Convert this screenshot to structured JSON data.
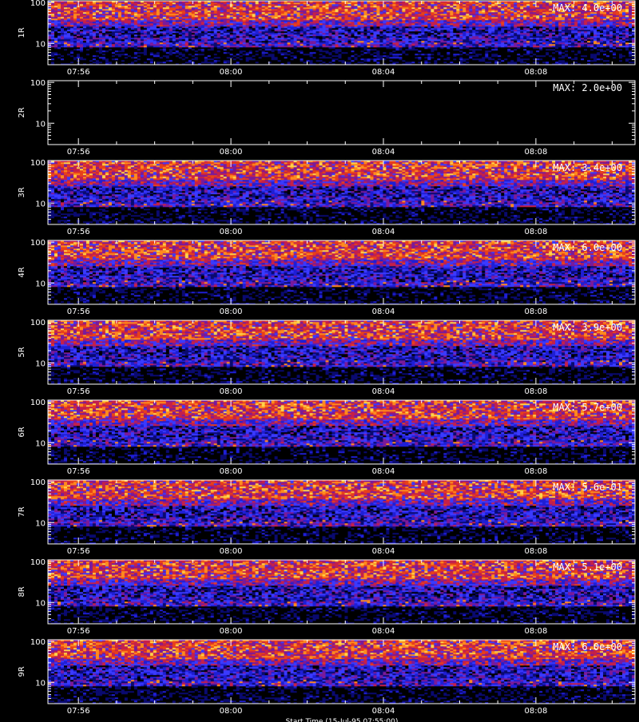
{
  "chart_data": {
    "type": "heatmap",
    "colors": {
      "background": "#000000",
      "axis": "#ffffff",
      "colormap": [
        "#000000",
        "#0a0a70",
        "#1f1fd6",
        "#3a3aff",
        "#7a1a9a",
        "#c4204a",
        "#e8401a",
        "#ff8a1e",
        "#ffd24a",
        "#ffffff"
      ]
    },
    "x_tick_labels": [
      "07:56",
      "08:00",
      "08:04",
      "08:08"
    ],
    "x_ticks_minutes": [
      56,
      60,
      64,
      68
    ],
    "x_range_minutes": [
      55.2,
      70.6
    ],
    "y_tick_labels": [
      "10",
      "100"
    ],
    "y_ticks": [
      10,
      100
    ],
    "y_range": [
      3,
      110
    ],
    "y_scale": "log",
    "footer_text": "Start Time (15-Jul-95 07:55:00)",
    "panels": [
      {
        "label": "1R",
        "max_text": "MAX: 4.0e+00",
        "empty": false
      },
      {
        "label": "2R",
        "max_text": "MAX: 2.0e+00",
        "empty": true
      },
      {
        "label": "3R",
        "max_text": "MAX: 3.4e+00",
        "empty": false
      },
      {
        "label": "4R",
        "max_text": "MAX: 6.0e+00",
        "empty": false
      },
      {
        "label": "5R",
        "max_text": "MAX: 3.9e+00",
        "empty": false
      },
      {
        "label": "6R",
        "max_text": "MAX: 5.7e+00",
        "empty": false
      },
      {
        "label": "7R",
        "max_text": "MAX: 5.6e-01",
        "empty": false
      },
      {
        "label": "8R",
        "max_text": "MAX: 5.1e+00",
        "empty": false
      },
      {
        "label": "9R",
        "max_text": "MAX: 6.0e+00",
        "empty": false
      }
    ]
  }
}
